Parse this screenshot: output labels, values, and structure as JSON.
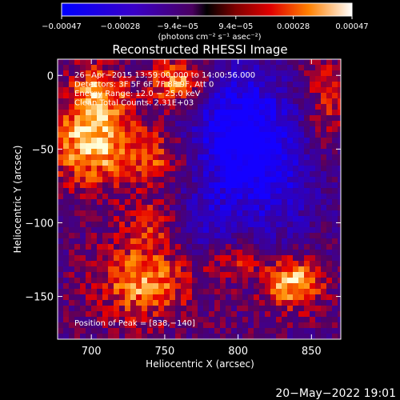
{
  "chart_data": {
    "type": "heatmap",
    "title": "Reconstructed RHESSI Image",
    "xlabel": "Heliocentric X (arcsec)",
    "ylabel": "Heliocentric Y (arcsec)",
    "xlim": [
      677,
      870
    ],
    "ylim": [
      -179,
      11
    ],
    "x_ticks": [
      700,
      750,
      800,
      850
    ],
    "y_ticks": [
      0,
      -50,
      -100,
      -150
    ],
    "x_tick_labels": [
      "700",
      "750",
      "800",
      "850"
    ],
    "y_tick_labels": [
      "0",
      "−50",
      "−100",
      "−150"
    ],
    "colorbar": {
      "min": -0.00047,
      "max": 0.00047,
      "tick_values": [
        -0.00047,
        -0.00028,
        -9.4e-05,
        9.4e-05,
        0.00028,
        0.00047
      ],
      "tick_labels": [
        "−0.00047",
        "−0.00028",
        "−9.4e−05",
        "9.4e−05",
        "0.00028",
        "0.00047"
      ],
      "units_label": "(photons cm⁻² s⁻¹ asec⁻²)"
    },
    "annotations": [
      "26−Apr−2015 13:59:00.000 to 14:00:56.000",
      "Detectors: 3F 5F 6F 7F 8F 9F, Att 0",
      "Energy Range: 12.0 − 25.0 keV",
      "Clean    Total Counts: 2.31E+03"
    ],
    "peak_label": "Position of Peak = [838,−140]",
    "peak": [
      838,
      -140
    ],
    "sources": [
      {
        "x": 700,
        "y": -45,
        "amp": 1.0,
        "sx": 20,
        "sy": 20
      },
      {
        "x": 705,
        "y": -10,
        "amp": 0.75,
        "sx": 12,
        "sy": 12
      },
      {
        "x": 760,
        "y": -5,
        "amp": 0.9,
        "sx": 14,
        "sy": 12
      },
      {
        "x": 745,
        "y": -55,
        "amp": 0.55,
        "sx": 16,
        "sy": 14
      },
      {
        "x": 735,
        "y": -140,
        "amp": 0.8,
        "sx": 22,
        "sy": 18
      },
      {
        "x": 740,
        "y": -100,
        "amp": 0.45,
        "sx": 14,
        "sy": 12
      },
      {
        "x": 838,
        "y": -140,
        "amp": 1.0,
        "sx": 14,
        "sy": 12
      },
      {
        "x": 800,
        "y": -125,
        "amp": 0.45,
        "sx": 14,
        "sy": 10
      },
      {
        "x": 860,
        "y": -15,
        "amp": 0.45,
        "sx": 10,
        "sy": 25
      },
      {
        "x": 800,
        "y": -35,
        "amp": -0.95,
        "sx": 25,
        "sy": 30
      },
      {
        "x": 820,
        "y": -75,
        "amp": -0.55,
        "sx": 25,
        "sy": 30
      },
      {
        "x": 775,
        "y": -100,
        "amp": -0.4,
        "sx": 15,
        "sy": 15
      }
    ],
    "grid": false
  },
  "footer": {
    "timestamp": "20−May−2022 19:01"
  }
}
